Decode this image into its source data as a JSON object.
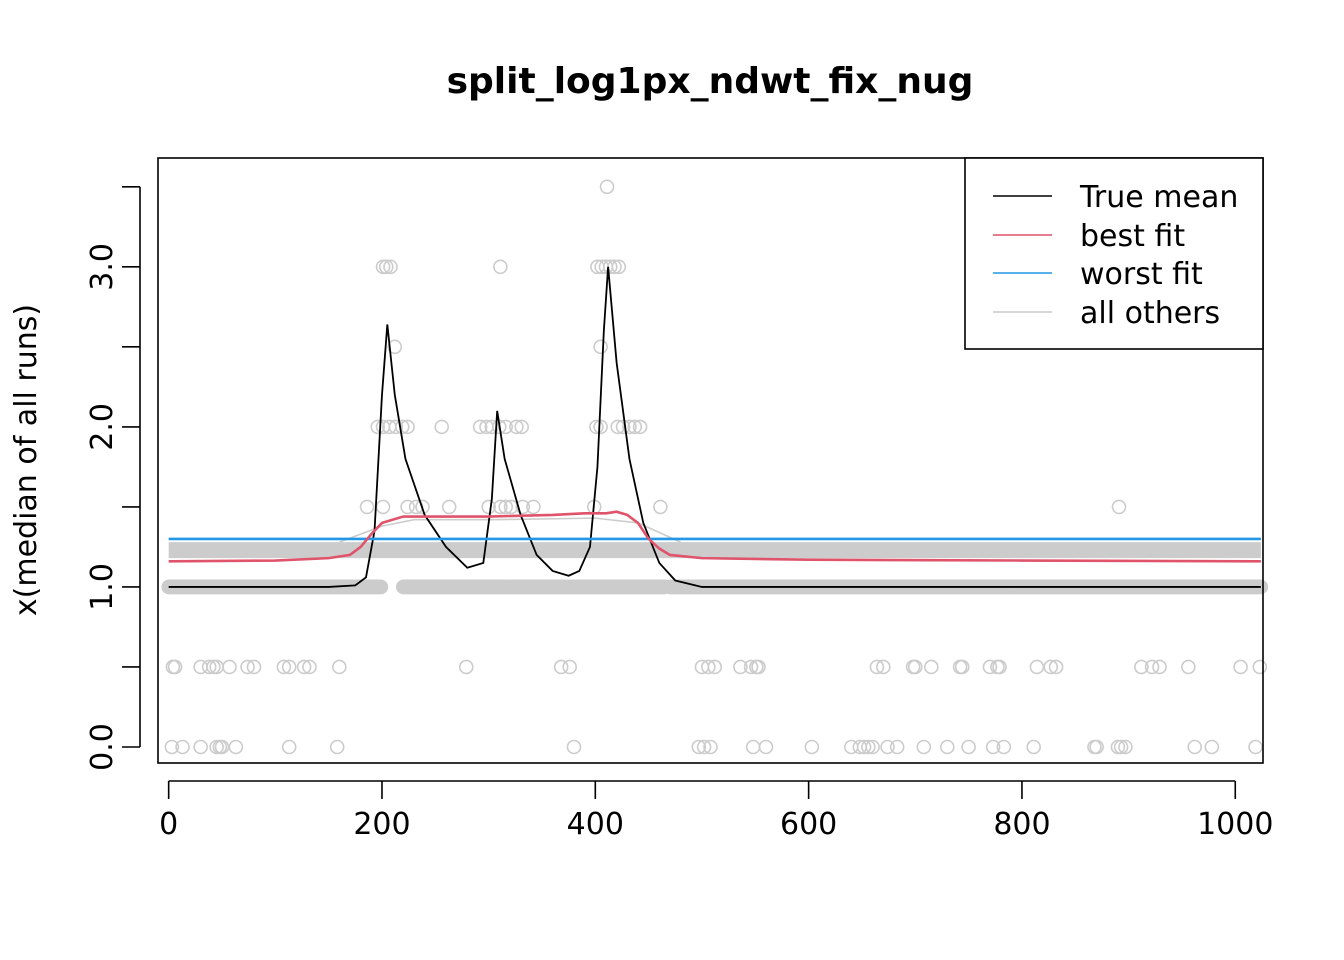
{
  "chart_data": {
    "type": "line",
    "title": "split_log1px_ndwt_fix_nug",
    "xlabel": "",
    "ylabel": "x(median of all runs)",
    "xlim": [
      -10,
      1026
    ],
    "ylim": [
      -0.1,
      3.68
    ],
    "x_ticks": [
      "0",
      "200",
      "400",
      "600",
      "800",
      "1000"
    ],
    "y_ticks": [
      "0.0",
      "",
      "1.0",
      "",
      "2.0",
      "",
      "3.0",
      ""
    ],
    "y_tick_values": [
      0,
      0.5,
      1,
      1.5,
      2,
      2.5,
      3,
      3.5
    ],
    "x_tick_values": [
      0,
      200,
      400,
      600,
      800,
      1000
    ],
    "legend": {
      "position": "top-right",
      "entries": [
        {
          "label": "True mean",
          "color": "#000000"
        },
        {
          "label": "best fit",
          "color": "#DF536B"
        },
        {
          "label": "worst fit",
          "color": "#2297E6"
        },
        {
          "label": "all others",
          "color": "#CCCCCC"
        }
      ]
    },
    "colors": {
      "true_mean": "#000000",
      "best_fit": "#DF536B",
      "worst_fit": "#2297E6",
      "others": "#CCCCCC",
      "points": "#CCCCCC"
    },
    "series": [
      {
        "name": "True mean",
        "x": [
          0,
          150,
          175,
          185,
          193,
          200,
          205,
          212,
          222,
          240,
          260,
          280,
          295,
          303,
          308,
          315,
          330,
          345,
          360,
          375,
          385,
          395,
          402,
          408,
          412,
          420,
          432,
          445,
          460,
          475,
          500,
          550,
          1024
        ],
        "y": [
          1.0,
          1.0,
          1.01,
          1.06,
          1.35,
          2.2,
          2.64,
          2.2,
          1.8,
          1.45,
          1.25,
          1.12,
          1.15,
          1.55,
          2.1,
          1.8,
          1.45,
          1.2,
          1.1,
          1.07,
          1.1,
          1.25,
          1.75,
          2.6,
          3.0,
          2.4,
          1.8,
          1.4,
          1.15,
          1.04,
          1.0,
          1.0,
          1.0
        ]
      },
      {
        "name": "best fit",
        "x": [
          0,
          100,
          150,
          170,
          180,
          190,
          200,
          220,
          300,
          360,
          390,
          410,
          420,
          430,
          440,
          450,
          460,
          470,
          500,
          600,
          800,
          1024
        ],
        "y": [
          1.16,
          1.165,
          1.18,
          1.2,
          1.25,
          1.33,
          1.4,
          1.44,
          1.44,
          1.45,
          1.46,
          1.46,
          1.47,
          1.45,
          1.4,
          1.3,
          1.24,
          1.2,
          1.18,
          1.17,
          1.165,
          1.16
        ]
      },
      {
        "name": "worst fit",
        "x": [
          0,
          1024
        ],
        "y": [
          1.3,
          1.3
        ]
      },
      {
        "name": "all others",
        "band": {
          "x": [
            0,
            1024
          ],
          "y_low": 1.18,
          "y_high": 1.28
        },
        "hump": {
          "x": [
            160,
            200,
            230,
            300,
            400,
            440,
            480
          ],
          "y": [
            1.28,
            1.38,
            1.42,
            1.42,
            1.43,
            1.4,
            1.28
          ]
        }
      }
    ],
    "points": {
      "row_y": [
        {
          "y": 0.0,
          "x": [
            3,
            13,
            30,
            45,
            48,
            50,
            63,
            113,
            158,
            380,
            497,
            502,
            508,
            548,
            560,
            603,
            640,
            648,
            652,
            656,
            660,
            674,
            683,
            708,
            730,
            750,
            773,
            783,
            811,
            868,
            870,
            890,
            893,
            897,
            962,
            978,
            1019
          ]
        },
        {
          "y": 0.5,
          "x": [
            4,
            6,
            30,
            38,
            42,
            45,
            57,
            74,
            80,
            108,
            113,
            127,
            132,
            160,
            279,
            368,
            376,
            500,
            506,
            512,
            536,
            546,
            551,
            553,
            664,
            670,
            698,
            700,
            715,
            742,
            744,
            770,
            777,
            779,
            814,
            827,
            832,
            912,
            922,
            929,
            956,
            1005,
            1023
          ]
        },
        {
          "y": 1.0,
          "x_ranges": [
            [
              0,
              199
            ],
            [
              220,
              465
            ],
            [
              470,
              1024
            ]
          ]
        },
        {
          "y": 1.5,
          "x": [
            186,
            201,
            224,
            232,
            238,
            263,
            300,
            311,
            316,
            321,
            332,
            342,
            399,
            461,
            891
          ]
        },
        {
          "y": 2.0,
          "x": [
            196,
            201,
            207,
            213,
            219,
            224,
            256,
            292,
            298,
            303,
            310,
            316,
            326,
            331,
            401,
            405,
            421,
            426,
            432,
            437,
            442
          ]
        },
        {
          "y": 2.5,
          "x": [
            212,
            405
          ]
        },
        {
          "y": 3.0,
          "x": [
            201,
            204,
            208,
            311,
            402,
            406,
            410,
            414,
            418,
            422
          ]
        },
        {
          "y": 3.5,
          "x": [
            411
          ]
        }
      ]
    }
  }
}
